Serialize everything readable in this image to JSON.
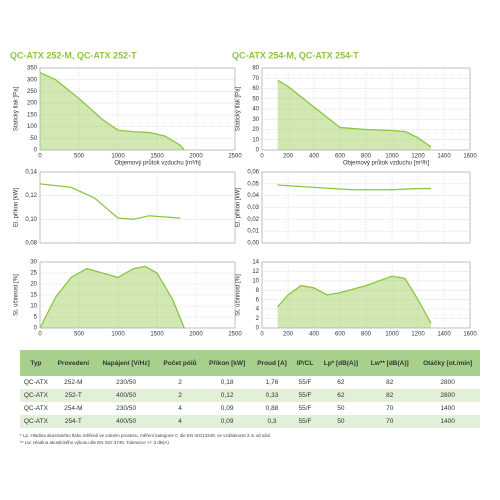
{
  "chart_data": [
    {
      "type": "area",
      "title": "QC-ATX 252-M, QC-ATX 252-T",
      "ylabel": "Statický tlak [Pa]",
      "xlabel": "Objemový průtok vzduchu [m³/h]",
      "color": "#8cc63f",
      "x": [
        0,
        200,
        500,
        800,
        1000,
        1200,
        1400,
        1600,
        1800,
        1850
      ],
      "values": [
        330,
        300,
        220,
        130,
        85,
        78,
        75,
        60,
        20,
        0
      ],
      "xlim": [
        0,
        2500
      ],
      "ylim": [
        0,
        350
      ],
      "xticks": [
        0,
        500,
        1000,
        1500,
        2000,
        2500
      ],
      "yticks": [
        0,
        50,
        100,
        150,
        200,
        250,
        300,
        350
      ],
      "grid": true,
      "xtick_labels": true
    },
    {
      "type": "line",
      "ylabel": "El. příkon [kW]",
      "color": "#8cc63f",
      "x": [
        0,
        400,
        700,
        1000,
        1200,
        1400,
        1800
      ],
      "values": [
        0.13,
        0.127,
        0.118,
        0.101,
        0.1,
        0.103,
        0.101
      ],
      "xlim": [
        0,
        2500
      ],
      "ylim": [
        0.08,
        0.14
      ],
      "xticks": [
        0,
        500,
        1000,
        1500,
        2000,
        2500
      ],
      "yticks": [
        {
          "value": 0.08,
          "label": "0,08"
        },
        {
          "value": 0.1,
          "label": "0,10"
        },
        {
          "value": 0.12,
          "label": "0,12"
        },
        {
          "value": 0.14,
          "label": "0,14"
        }
      ],
      "grid": true,
      "xtick_labels": false
    },
    {
      "type": "area",
      "ylabel": "St. účinnost [%]",
      "color": "#8cc63f",
      "x": [
        0,
        200,
        400,
        600,
        800,
        1000,
        1200,
        1350,
        1500,
        1700,
        1850
      ],
      "values": [
        0,
        14,
        23,
        27,
        25,
        23,
        27,
        28,
        25,
        13,
        0
      ],
      "xlim": [
        0,
        2500
      ],
      "ylim": [
        0,
        30
      ],
      "xticks": [
        0,
        500,
        1000,
        1500,
        2000,
        2500
      ],
      "yticks": [
        0,
        5,
        10,
        15,
        20,
        25,
        30
      ],
      "grid": true,
      "xtick_labels": true
    },
    {
      "type": "area",
      "title": "QC-ATX 254-M, QC-ATX 254-T",
      "ylabel": "Statický tlak [Pa]",
      "xlabel": "Objemový průtok vzduchu [m³/h]",
      "color": "#8cc63f",
      "x": [
        120,
        200,
        400,
        600,
        800,
        1000,
        1100,
        1200,
        1300
      ],
      "values": [
        68,
        62,
        42,
        22,
        20,
        19,
        18,
        12,
        3
      ],
      "xlim": [
        0,
        1600
      ],
      "ylim": [
        0,
        80
      ],
      "xticks": [
        0,
        200,
        400,
        600,
        800,
        1000,
        1200,
        1400,
        1600
      ],
      "yticks": [
        0,
        10,
        20,
        30,
        40,
        50,
        60,
        70,
        80
      ],
      "grid": true,
      "xtick_labels": true
    },
    {
      "type": "line",
      "ylabel": "El. příkon [kW]",
      "color": "#8cc63f",
      "x": [
        120,
        400,
        700,
        1000,
        1200,
        1300
      ],
      "values": [
        0.049,
        0.047,
        0.045,
        0.045,
        0.046,
        0.046
      ],
      "xlim": [
        0,
        1600
      ],
      "ylim": [
        0,
        0.06
      ],
      "xticks": [
        0,
        200,
        400,
        600,
        800,
        1000,
        1200,
        1400,
        1600
      ],
      "yticks": [
        {
          "value": 0,
          "label": "0,00"
        },
        {
          "value": 0.01,
          "label": "0,01"
        },
        {
          "value": 0.02,
          "label": "0,02"
        },
        {
          "value": 0.03,
          "label": "0,03"
        },
        {
          "value": 0.04,
          "label": "0,04"
        },
        {
          "value": 0.05,
          "label": "0,05"
        },
        {
          "value": 0.06,
          "label": "0,06"
        }
      ],
      "grid": true,
      "xtick_labels": false
    },
    {
      "type": "area",
      "ylabel": "St. účinnost [%]",
      "color": "#8cc63f",
      "x": [
        120,
        200,
        300,
        400,
        500,
        600,
        800,
        1000,
        1100,
        1200,
        1300
      ],
      "values": [
        4.5,
        7,
        9,
        8.5,
        7,
        7.5,
        9,
        11,
        10.5,
        6,
        1
      ],
      "xlim": [
        0,
        1600
      ],
      "ylim": [
        0,
        14
      ],
      "xticks": [
        0,
        200,
        400,
        600,
        800,
        1000,
        1200,
        1400,
        1600
      ],
      "yticks": [
        0,
        2,
        4,
        6,
        8,
        10,
        12,
        14
      ],
      "grid": true,
      "xtick_labels": true
    }
  ],
  "table": {
    "header": [
      "Typ",
      "Provedení",
      "Napájení [V/Hz]",
      "Počet pólů",
      "Příkon [kW]",
      "Proud [A]",
      "IP/CL",
      "Lp* [dB(A)]",
      "Lw** [dB(A)]",
      "Otáčky [ot./min]"
    ],
    "rows": [
      [
        "QC-ATX",
        "252-M",
        "230/50",
        "2",
        "0,18",
        "1,76",
        "55/F",
        "62",
        "82",
        "2800"
      ],
      [
        "QC-ATX",
        "252-T",
        "400/50",
        "2",
        "0,12",
        "0,33",
        "55/F",
        "62",
        "82",
        "2800"
      ],
      [
        "QC-ATX",
        "254-M",
        "230/50",
        "4",
        "0,09",
        "0,88",
        "55/F",
        "50",
        "70",
        "1400"
      ],
      [
        "QC-ATX",
        "254-T",
        "400/50",
        "4",
        "0,09",
        "0,3",
        "55/F",
        "50",
        "70",
        "1400"
      ]
    ]
  },
  "notes": [
    "* Lp: Hladina akustického tlaku měřená ve volném prostoru, měření kategorie C dle EN ISO13349, ve vzdálenosti 3 m od sání",
    "** Lw: Hladina akustického výkonu dle EN ISO 3746. Tolerance +/- 3 dB(A)"
  ]
}
